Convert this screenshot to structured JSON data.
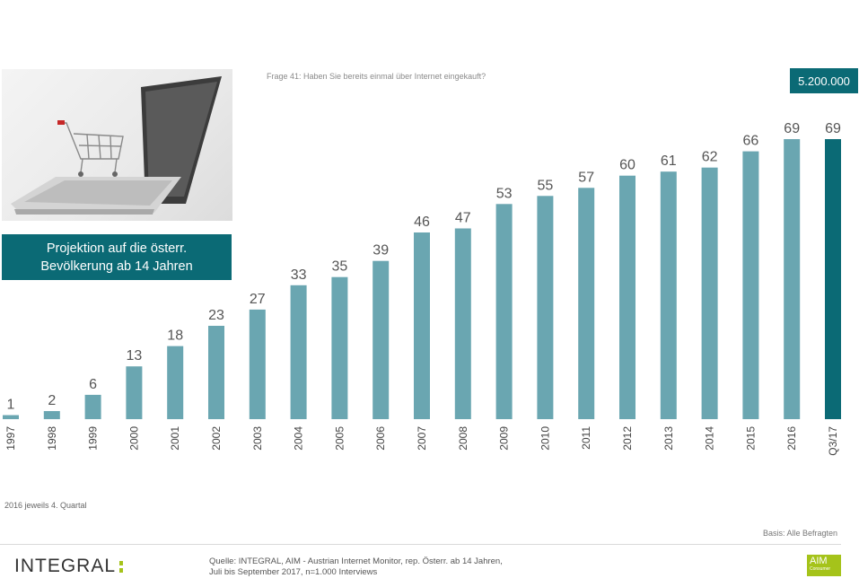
{
  "header": {
    "question": "Frage 41: Haben Sie bereits einmal über Internet eingekauft?",
    "projection_line1": "Projektion auf die österr.",
    "projection_line2": "Bevölkerung ab 14 Jahren",
    "projection_value": "5.200.000"
  },
  "chart_data": {
    "type": "bar",
    "categories": [
      "1997",
      "1998",
      "1999",
      "2000",
      "2001",
      "2002",
      "2003",
      "2004",
      "2005",
      "2006",
      "2007",
      "2008",
      "2009",
      "2010",
      "2011",
      "2012",
      "2013",
      "2014",
      "2015",
      "2016",
      "Q3/17"
    ],
    "values": [
      1,
      2,
      6,
      13,
      18,
      23,
      27,
      33,
      35,
      39,
      46,
      47,
      53,
      55,
      57,
      60,
      61,
      62,
      66,
      69,
      69
    ],
    "colors": {
      "default": "#6aa6b1",
      "highlight": "#0b6a75"
    },
    "highlight_index": 20,
    "ylim": [
      0,
      69
    ],
    "grid": false,
    "xlabel": "",
    "ylabel": ""
  },
  "footer": {
    "note_quarter": "2016 jeweils 4. Quartal",
    "basis": "Basis: Alle Befragten",
    "source_line1": "Quelle: INTEGRAL, AIM - Austrian Internet Monitor, rep. Österr. ab 14 Jahren,",
    "source_line2": "Juli  bis September 2017, n=1.000  Interviews",
    "logo_integral": "INTEGRAL",
    "logo_aim": "AIM",
    "logo_aim_sub": "Consumer"
  }
}
